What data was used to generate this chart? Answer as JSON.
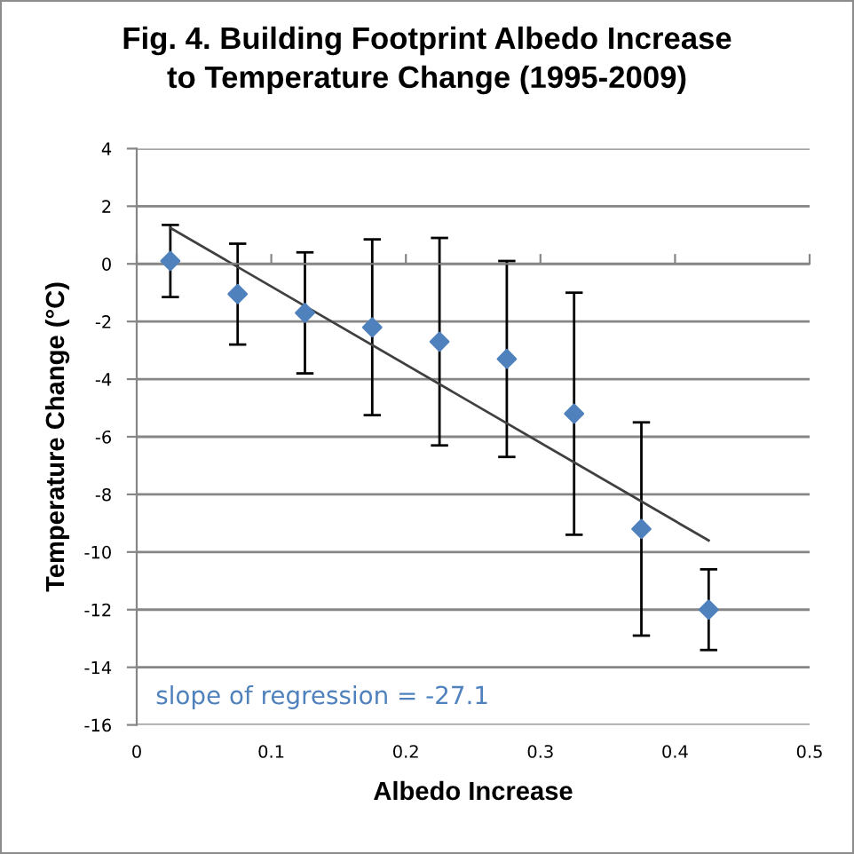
{
  "chart_data": {
    "type": "scatter",
    "title": "Fig. 4. Building Footprint Albedo Increase\nto Temperature Change (1995-2009)",
    "xlabel": "Albedo Increase",
    "ylabel": "Temperature Change (°C)",
    "annotations": [
      "slope of regression = -27.1"
    ],
    "xlim": [
      0,
      0.5
    ],
    "ylim": [
      -16,
      4
    ],
    "xticks": [
      0,
      0.1,
      0.2,
      0.3,
      0.4,
      0.5
    ],
    "yticks": [
      -16,
      -14,
      -12,
      -10,
      -8,
      -6,
      -4,
      -2,
      0,
      2,
      4
    ],
    "grid": "y",
    "marker": "diamond",
    "series": [
      {
        "color": "#4f81bd",
        "x": [
          0.025,
          0.075,
          0.125,
          0.175,
          0.225,
          0.275,
          0.325,
          0.375,
          0.425
        ],
        "values": [
          0.1,
          -1.05,
          -1.7,
          -2.2,
          -2.7,
          -3.3,
          -5.2,
          -9.2,
          -12
        ],
        "errors": [
          1.25,
          1.75,
          2.1,
          3.05,
          3.6,
          3.4,
          4.2,
          3.7,
          1.4
        ]
      },
      {
        "type": "line",
        "line_style": "solid",
        "marker": "none",
        "color": "#404040",
        "x": [
          0.025,
          0.425
        ],
        "values": [
          1.25,
          -9.6
        ]
      }
    ]
  }
}
